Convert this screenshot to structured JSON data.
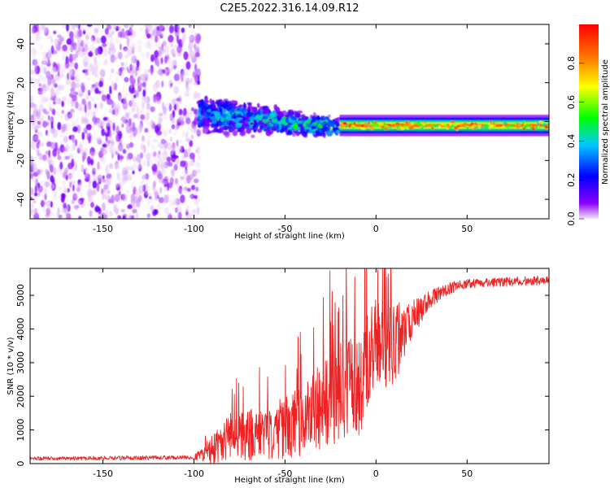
{
  "figure_title": "C2E5.2022.316.14.09.R12",
  "chart_data": [
    {
      "type": "heatmap",
      "title": "C2E5.2022.316.14.09.R12",
      "xlabel": "Height of straight line (km)",
      "ylabel": "Frequency (Hz)",
      "xlim": [
        -190,
        95
      ],
      "ylim": [
        -50,
        50
      ],
      "xticks": [
        -150,
        -100,
        -50,
        0,
        50
      ],
      "yticks": [
        -40,
        -20,
        0,
        20,
        40
      ],
      "colorbar": {
        "label": "Normalized spectral amplitude",
        "range": [
          0,
          1
        ],
        "ticks": [
          0.0,
          0.2,
          0.4,
          0.6,
          0.8
        ],
        "colormap": [
          "#f3e4f7",
          "#8a00ff",
          "#0000ff",
          "#00c8ff",
          "#00ff00",
          "#ffff00",
          "#ff8000",
          "#ff0000"
        ]
      },
      "regions": [
        {
          "description": "broadband noise",
          "x_range": [
            -190,
            -97
          ],
          "freq_range": [
            -50,
            50
          ],
          "amplitude": 0.08
        },
        {
          "description": "signal onset",
          "x_range": [
            -97,
            -20
          ],
          "center_freq": [
            4,
            -3
          ],
          "half_width_hz": [
            7,
            3
          ],
          "amplitude": [
            0.35,
            0.55
          ]
        },
        {
          "description": "strong carrier",
          "x_range": [
            -20,
            95
          ],
          "center_freq": [
            -2,
            -2
          ],
          "half_width_hz": [
            2.5,
            2
          ],
          "amplitude": 0.9
        }
      ]
    },
    {
      "type": "line",
      "xlabel": "Height of straight line (km)",
      "ylabel": "SNR (10 * v/v)",
      "xlim": [
        -190,
        95
      ],
      "ylim": [
        0,
        5800
      ],
      "xticks": [
        -150,
        -100,
        -50,
        0,
        50
      ],
      "yticks": [
        0,
        1000,
        2000,
        3000,
        4000,
        5000
      ],
      "series": [
        {
          "name": "SNR",
          "color": "#ee2222",
          "envelope_x": [
            -190,
            -100,
            -90,
            -80,
            -60,
            -40,
            -25,
            -10,
            0,
            10,
            20,
            30,
            40,
            50,
            95
          ],
          "envelope_center": [
            150,
            180,
            400,
            800,
            900,
            1300,
            2000,
            2300,
            3600,
            3500,
            4300,
            4900,
            5200,
            5350,
            5450
          ],
          "envelope_spread": [
            60,
            70,
            500,
            800,
            900,
            1200,
            1600,
            1800,
            1500,
            1400,
            600,
            300,
            200,
            150,
            150
          ]
        }
      ]
    }
  ]
}
